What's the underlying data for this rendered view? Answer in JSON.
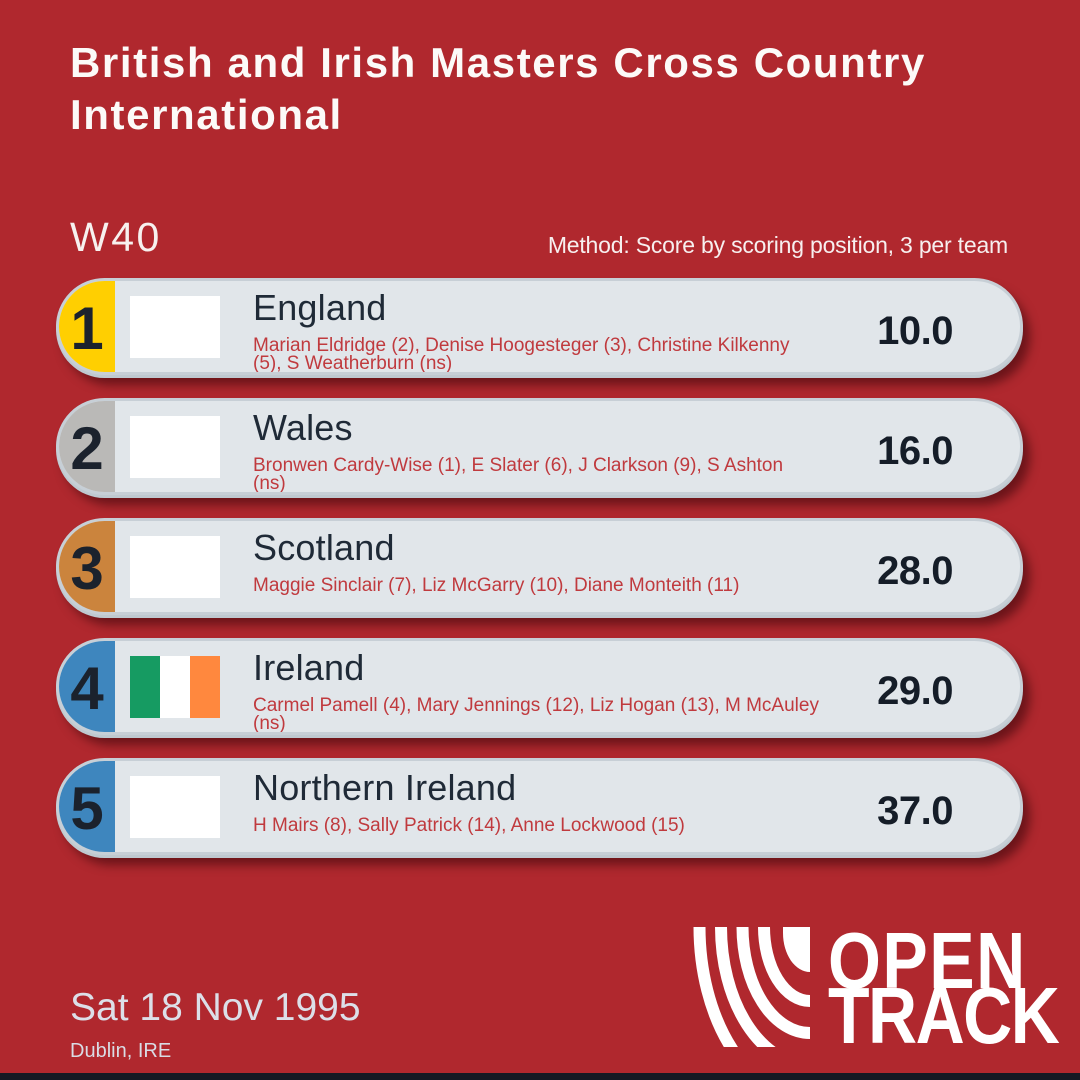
{
  "title": "British and Irish Masters Cross Country International",
  "category": "W40",
  "method": "Method: Score by scoring position, 3 per team",
  "rows": [
    {
      "rank": "1",
      "team": "England",
      "athletes": "Marian Eldridge (2), Denise Hoogesteger (3), Christine Kilkenny (5), S Weatherburn (ns)",
      "score": "10.0",
      "medal_color": "#FFCF01",
      "flag": "blank"
    },
    {
      "rank": "2",
      "team": "Wales",
      "athletes": "Bronwen Cardy-Wise (1), E Slater (6), J Clarkson (9), S Ashton (ns)",
      "score": "16.0",
      "medal_color": "#BAB9B7",
      "flag": "blank"
    },
    {
      "rank": "3",
      "team": "Scotland",
      "athletes": "Maggie Sinclair (7), Liz McGarry (10), Diane Monteith (11)",
      "score": "28.0",
      "medal_color": "#CB843D",
      "flag": "blank"
    },
    {
      "rank": "4",
      "team": "Ireland",
      "athletes": "Carmel Pamell (4), Mary Jennings (12), Liz Hogan (13), M McAuley (ns)",
      "score": "29.0",
      "medal_color": "#3E86BE",
      "flag": "ireland"
    },
    {
      "rank": "5",
      "team": "Northern Ireland",
      "athletes": "H Mairs (8), Sally Patrick (14), Anne Lockwood (15)",
      "score": "37.0",
      "medal_color": "#3E86BE",
      "flag": "blank"
    }
  ],
  "footer": {
    "date": "Sat 18 Nov 1995",
    "location": "Dublin, IRE"
  },
  "logo": {
    "line1": "OPEN",
    "line2": "TRACK"
  },
  "colors": {
    "background": "#B0282E",
    "card_fill": "#E1E6EA",
    "card_border": "#C7CFD6",
    "athletes_text": "#C03A3E",
    "ireland_flag": [
      "#169B62",
      "#FFFFFF",
      "#FF883E"
    ],
    "gold": "#FFCF01",
    "silver": "#BAB9B7",
    "bronze": "#CB843D",
    "blue": "#3E86BE"
  }
}
